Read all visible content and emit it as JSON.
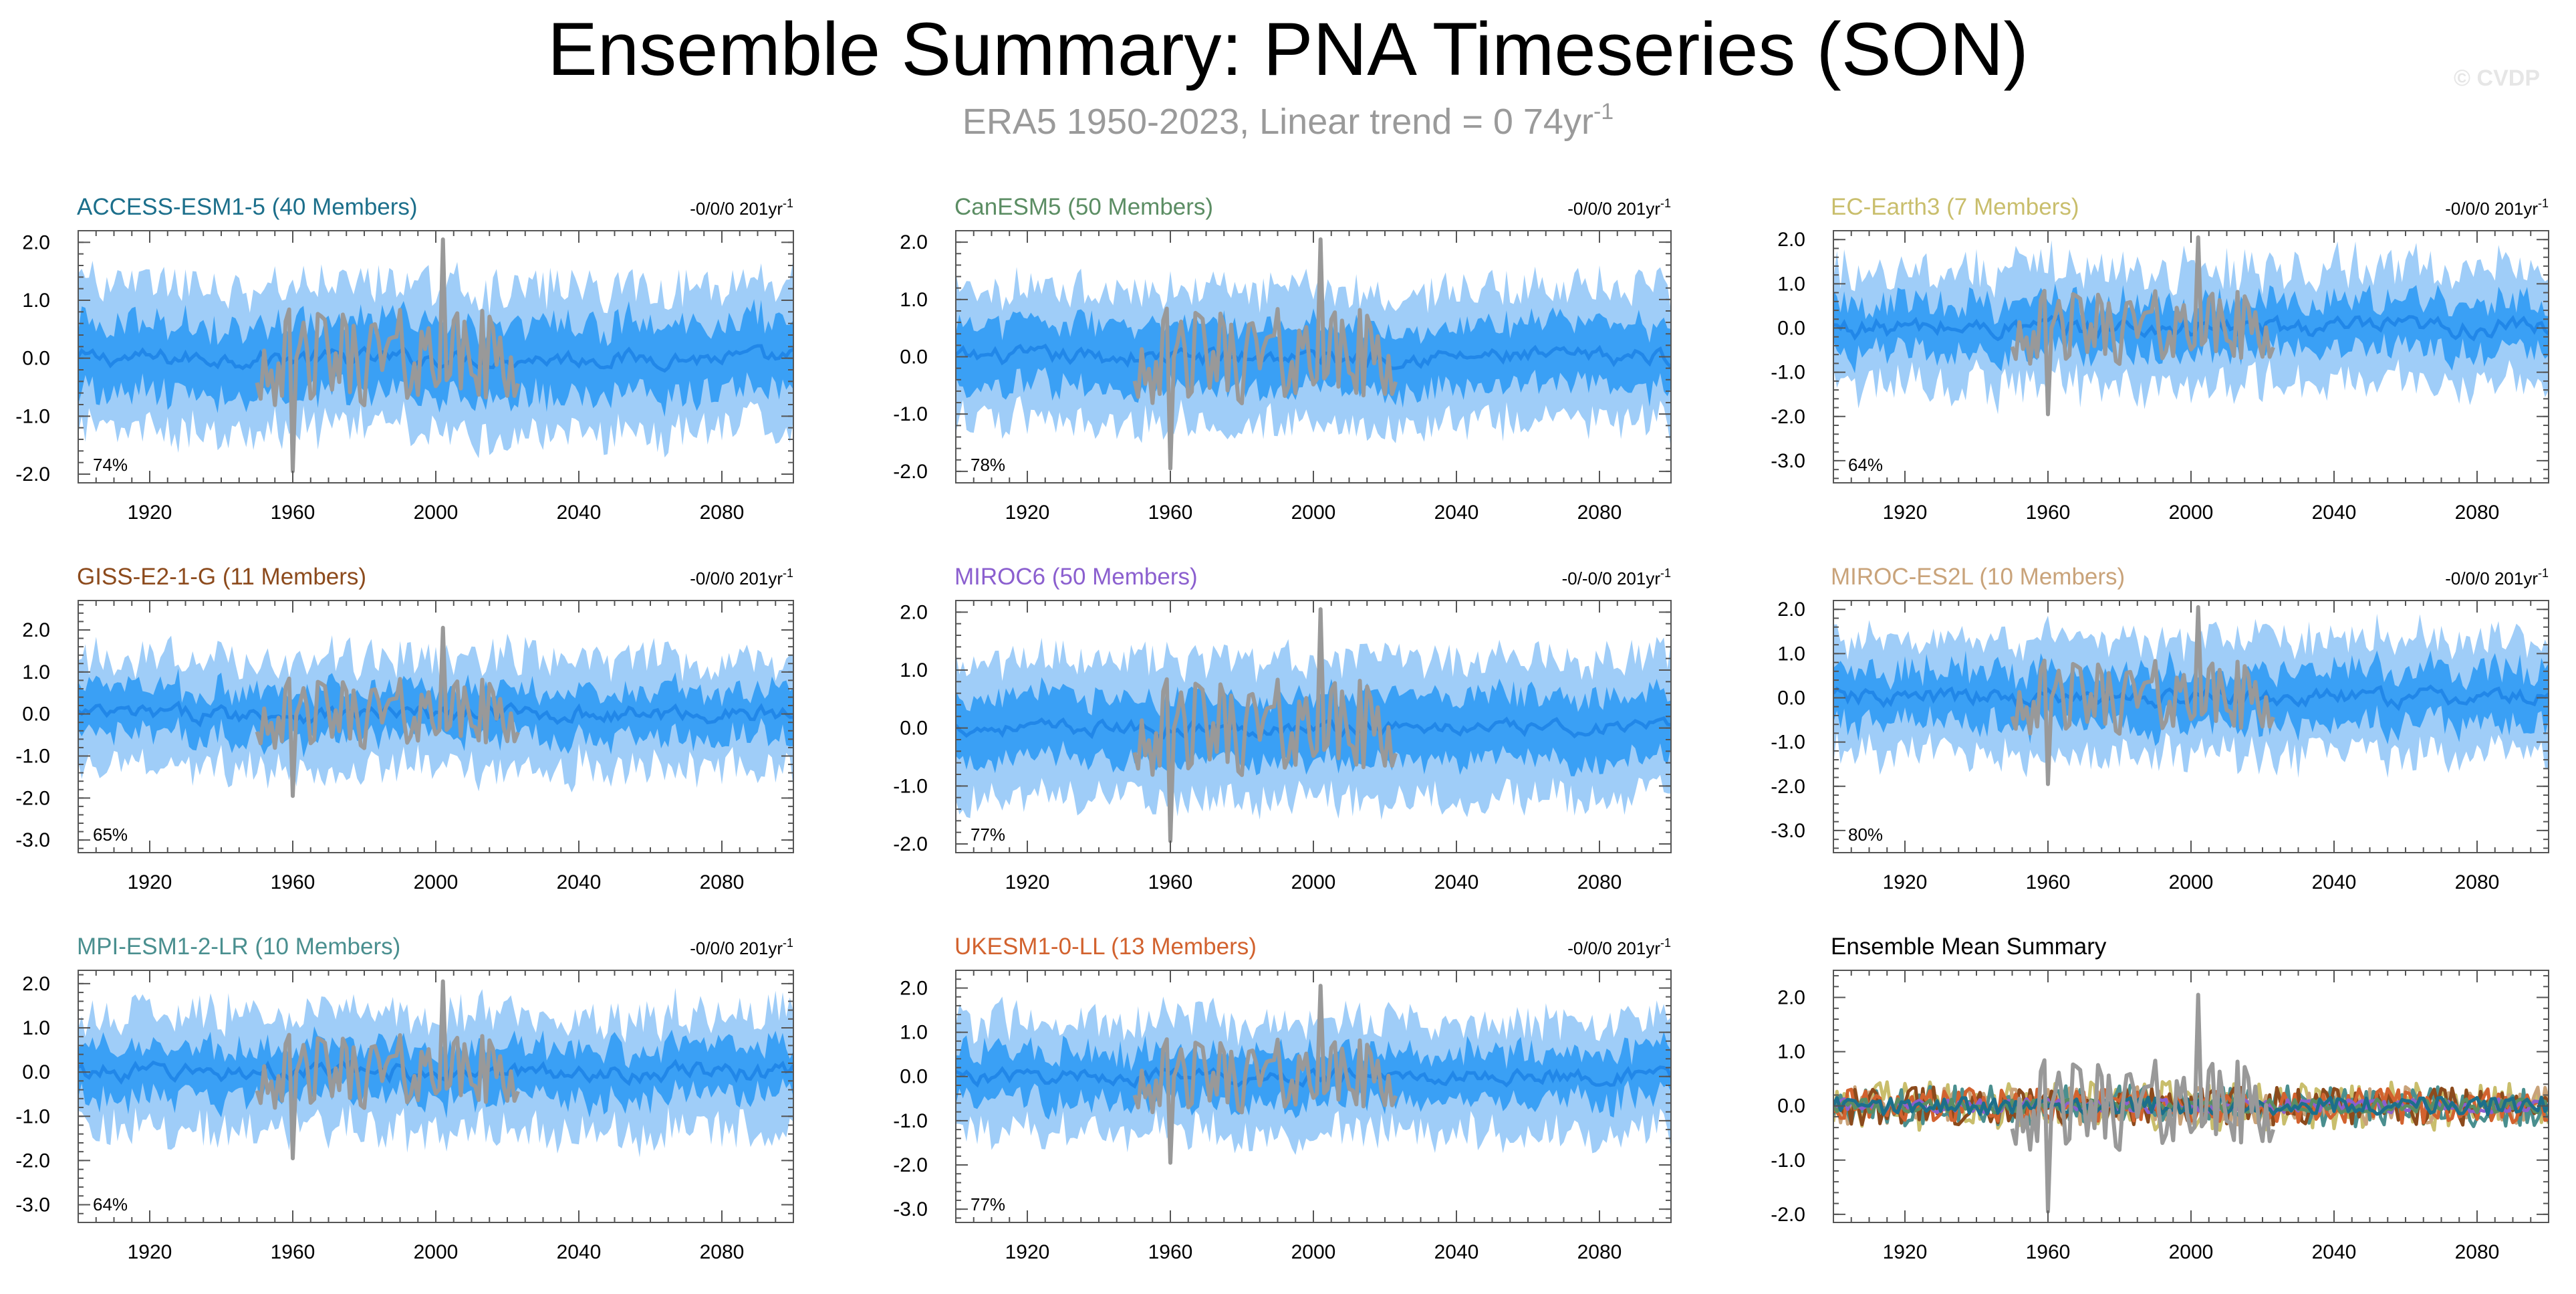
{
  "figure": {
    "title": "Ensemble Summary: PNA Timeseries (SON)",
    "subtitle_prefix": "ERA5 1950-2023, Linear trend = 0 74yr",
    "subtitle_sup": "-1",
    "watermark": "© CVDP"
  },
  "colors": {
    "outer_band": "#9fcdf8",
    "inner_band": "#3aa0f5",
    "ensemble_mean": "#2187e8",
    "observations": "#999999",
    "frame": "#555555"
  },
  "chart_data": [
    {
      "type": "area",
      "id": "access",
      "title": "ACCESS-ESM1-5 (40 Members)",
      "title_color": "#1c6f8b",
      "trend_text": "-0/0/0 201yr",
      "trend_sup": "-1",
      "percent": "74%",
      "ylim": [
        -2.15,
        2.2
      ],
      "yticks": [
        2.0,
        1.0,
        0.0,
        -1.0,
        -2.0
      ],
      "ytick_labels": [
        "2.0",
        "1.0",
        "0.0",
        "-1.0",
        "-2.0"
      ],
      "xlim": [
        1900,
        2100
      ],
      "xticks": [
        1920,
        1960,
        2000,
        2040,
        2080
      ],
      "xtick_labels": [
        "1920",
        "1960",
        "2000",
        "2040",
        "2080"
      ],
      "series": [
        {
          "name": "ensemble 10-90% range",
          "kind": "band",
          "half_width": 1.25,
          "noise": 0.35
        },
        {
          "name": "ensemble 25-75% range",
          "kind": "band",
          "half_width": 0.6,
          "noise": 0.25
        },
        {
          "name": "ensemble mean",
          "kind": "line",
          "amplitude": 0.12
        },
        {
          "name": "ERA5",
          "kind": "obs",
          "years": [
            1950,
            2023
          ],
          "amplitude": 0.85,
          "max": 2.05,
          "max_year": 2002,
          "min": -1.95,
          "min_year": 1960
        }
      ]
    },
    {
      "type": "area",
      "id": "canesm5",
      "title": "CanESM5 (50 Members)",
      "title_color": "#5b8d63",
      "trend_text": "-0/0/0 201yr",
      "trend_sup": "-1",
      "percent": "78%",
      "ylim": [
        -2.2,
        2.2
      ],
      "yticks": [
        2.0,
        1.0,
        0.0,
        -1.0,
        -2.0
      ],
      "ytick_labels": [
        "2.0",
        "1.0",
        "0.0",
        "-1.0",
        "-2.0"
      ],
      "xlim": [
        1900,
        2100
      ],
      "xticks": [
        1920,
        1960,
        2000,
        2040,
        2080
      ],
      "xtick_labels": [
        "1920",
        "1960",
        "2000",
        "2040",
        "2080"
      ],
      "series": [
        {
          "name": "ensemble 10-90% range",
          "kind": "band",
          "half_width": 1.15,
          "noise": 0.3
        },
        {
          "name": "ensemble 25-75% range",
          "kind": "band",
          "half_width": 0.55,
          "noise": 0.2
        },
        {
          "name": "ensemble mean",
          "kind": "line",
          "amplitude": 0.12
        },
        {
          "name": "ERA5",
          "kind": "obs",
          "years": [
            1950,
            2023
          ],
          "amplitude": 0.85,
          "max": 2.05,
          "max_year": 2002,
          "min": -1.95,
          "min_year": 1960
        }
      ]
    },
    {
      "type": "area",
      "id": "ecearth3",
      "title": "EC-Earth3 (7 Members)",
      "title_color": "#c9be6c",
      "trend_text": "-0/0/0 201yr",
      "trend_sup": "-1",
      "percent": "64%",
      "ylim": [
        -3.5,
        2.2
      ],
      "yticks": [
        2.0,
        1.0,
        0.0,
        -1.0,
        -2.0,
        -3.0
      ],
      "ytick_labels": [
        "2.0",
        "1.0",
        "0.0",
        "-1.0",
        "-2.0",
        "-3.0"
      ],
      "xlim": [
        1900,
        2100
      ],
      "xticks": [
        1920,
        1960,
        2000,
        2040,
        2080
      ],
      "xtick_labels": [
        "1920",
        "1960",
        "2000",
        "2040",
        "2080"
      ],
      "series": [
        {
          "name": "ensemble 10-90% range",
          "kind": "band",
          "half_width": 1.3,
          "noise": 0.45
        },
        {
          "name": "ensemble 25-75% range",
          "kind": "band",
          "half_width": 0.55,
          "noise": 0.3
        },
        {
          "name": "ensemble mean",
          "kind": "line",
          "amplitude": 0.18
        },
        {
          "name": "ERA5",
          "kind": "obs",
          "years": [
            1950,
            2023
          ],
          "amplitude": 0.85,
          "max": 2.05,
          "max_year": 2002,
          "min": -1.95,
          "min_year": 1960
        }
      ]
    },
    {
      "type": "area",
      "id": "giss",
      "title": "GISS-E2-1-G (11 Members)",
      "title_color": "#8c4a1c",
      "trend_text": "-0/0/0 201yr",
      "trend_sup": "-1",
      "percent": "65%",
      "ylim": [
        -3.3,
        2.7
      ],
      "yticks": [
        2.0,
        1.0,
        0.0,
        -1.0,
        -2.0,
        -3.0
      ],
      "ytick_labels": [
        "2.0",
        "1.0",
        "0.0",
        "-1.0",
        "-2.0",
        "-3.0"
      ],
      "xlim": [
        1900,
        2100
      ],
      "xticks": [
        1920,
        1960,
        2000,
        2040,
        2080
      ],
      "xtick_labels": [
        "1920",
        "1960",
        "2000",
        "2040",
        "2080"
      ],
      "series": [
        {
          "name": "ensemble 10-90% range",
          "kind": "band",
          "half_width": 1.3,
          "noise": 0.45
        },
        {
          "name": "ensemble 25-75% range",
          "kind": "band",
          "half_width": 0.55,
          "noise": 0.3
        },
        {
          "name": "ensemble mean",
          "kind": "line",
          "amplitude": 0.16
        },
        {
          "name": "ERA5",
          "kind": "obs",
          "years": [
            1950,
            2023
          ],
          "amplitude": 0.85,
          "max": 2.05,
          "max_year": 2002,
          "min": -1.95,
          "min_year": 1960
        }
      ]
    },
    {
      "type": "area",
      "id": "miroc6",
      "title": "MIROC6 (50 Members)",
      "title_color": "#8b5fcf",
      "trend_text": "-0/-0/0 201yr",
      "trend_sup": "-1",
      "percent": "77%",
      "ylim": [
        -2.15,
        2.2
      ],
      "yticks": [
        2.0,
        1.0,
        0.0,
        -1.0,
        -2.0
      ],
      "ytick_labels": [
        "2.0",
        "1.0",
        "0.0",
        "-1.0",
        "-2.0"
      ],
      "xlim": [
        1900,
        2100
      ],
      "xticks": [
        1920,
        1960,
        2000,
        2040,
        2080
      ],
      "xtick_labels": [
        "1920",
        "1960",
        "2000",
        "2040",
        "2080"
      ],
      "series": [
        {
          "name": "ensemble 10-90% range",
          "kind": "band",
          "half_width": 1.2,
          "noise": 0.3
        },
        {
          "name": "ensemble 25-75% range",
          "kind": "band",
          "half_width": 0.55,
          "noise": 0.2
        },
        {
          "name": "ensemble mean",
          "kind": "line",
          "amplitude": 0.1
        },
        {
          "name": "ERA5",
          "kind": "obs",
          "years": [
            1950,
            2023
          ],
          "amplitude": 0.85,
          "max": 2.05,
          "max_year": 2002,
          "min": -1.95,
          "min_year": 1960
        }
      ]
    },
    {
      "type": "area",
      "id": "miroces2l",
      "title": "MIROC-ES2L (10 Members)",
      "title_color": "#c9a37a",
      "trend_text": "-0/0/0 201yr",
      "trend_sup": "-1",
      "percent": "80%",
      "ylim": [
        -3.5,
        2.2
      ],
      "yticks": [
        2.0,
        1.0,
        0.0,
        -1.0,
        -2.0,
        -3.0
      ],
      "ytick_labels": [
        "2.0",
        "1.0",
        "0.0",
        "-1.0",
        "-2.0",
        "-3.0"
      ],
      "xlim": [
        1900,
        2100
      ],
      "xticks": [
        1920,
        1960,
        2000,
        2040,
        2080
      ],
      "xtick_labels": [
        "1920",
        "1960",
        "2000",
        "2040",
        "2080"
      ],
      "series": [
        {
          "name": "ensemble 10-90% range",
          "kind": "band",
          "half_width": 1.3,
          "noise": 0.4
        },
        {
          "name": "ensemble 25-75% range",
          "kind": "band",
          "half_width": 0.6,
          "noise": 0.3
        },
        {
          "name": "ensemble mean",
          "kind": "line",
          "amplitude": 0.16
        },
        {
          "name": "ERA5",
          "kind": "obs",
          "years": [
            1950,
            2023
          ],
          "amplitude": 0.85,
          "max": 2.05,
          "max_year": 2002,
          "min": -1.95,
          "min_year": 1960
        }
      ]
    },
    {
      "type": "area",
      "id": "mpi",
      "title": "MPI-ESM1-2-LR (10 Members)",
      "title_color": "#4a8f8f",
      "trend_text": "-0/0/0 201yr",
      "trend_sup": "-1",
      "percent": "64%",
      "ylim": [
        -3.4,
        2.3
      ],
      "yticks": [
        2.0,
        1.0,
        0.0,
        -1.0,
        -2.0,
        -3.0
      ],
      "ytick_labels": [
        "2.0",
        "1.0",
        "0.0",
        "-1.0",
        "-2.0",
        "-3.0"
      ],
      "xlim": [
        1900,
        2100
      ],
      "xticks": [
        1920,
        1960,
        2000,
        2040,
        2080
      ],
      "xtick_labels": [
        "1920",
        "1960",
        "2000",
        "2040",
        "2080"
      ],
      "series": [
        {
          "name": "ensemble 10-90% range",
          "kind": "band",
          "half_width": 1.3,
          "noise": 0.45
        },
        {
          "name": "ensemble 25-75% range",
          "kind": "band",
          "half_width": 0.55,
          "noise": 0.3
        },
        {
          "name": "ensemble mean",
          "kind": "line",
          "amplitude": 0.16
        },
        {
          "name": "ERA5",
          "kind": "obs",
          "years": [
            1950,
            2023
          ],
          "amplitude": 0.85,
          "max": 2.05,
          "max_year": 2002,
          "min": -1.95,
          "min_year": 1960
        }
      ]
    },
    {
      "type": "area",
      "id": "ukesm",
      "title": "UKESM1-0-LL (13 Members)",
      "title_color": "#d2622e",
      "trend_text": "-0/0/0 201yr",
      "trend_sup": "-1",
      "percent": "77%",
      "ylim": [
        -3.3,
        2.4
      ],
      "yticks": [
        2.0,
        1.0,
        0.0,
        -1.0,
        -2.0,
        -3.0
      ],
      "ytick_labels": [
        "2.0",
        "1.0",
        "0.0",
        "-1.0",
        "-2.0",
        "-3.0"
      ],
      "xlim": [
        1900,
        2100
      ],
      "xticks": [
        1920,
        1960,
        2000,
        2040,
        2080
      ],
      "xtick_labels": [
        "1920",
        "1960",
        "2000",
        "2040",
        "2080"
      ],
      "series": [
        {
          "name": "ensemble 10-90% range",
          "kind": "band",
          "half_width": 1.25,
          "noise": 0.4
        },
        {
          "name": "ensemble 25-75% range",
          "kind": "band",
          "half_width": 0.55,
          "noise": 0.3
        },
        {
          "name": "ensemble mean",
          "kind": "line",
          "amplitude": 0.14
        },
        {
          "name": "ERA5",
          "kind": "obs",
          "years": [
            1950,
            2023
          ],
          "amplitude": 0.85,
          "max": 2.05,
          "max_year": 2002,
          "min": -1.95,
          "min_year": 1960
        }
      ]
    },
    {
      "type": "line",
      "id": "summary",
      "title": "Ensemble Mean Summary",
      "title_color": "#000000",
      "ylim": [
        -2.15,
        2.5
      ],
      "yticks": [
        2.0,
        1.0,
        0.0,
        -1.0,
        -2.0
      ],
      "ytick_labels": [
        "2.0",
        "1.0",
        "0.0",
        "-1.0",
        "-2.0"
      ],
      "xlim": [
        1900,
        2100
      ],
      "xticks": [
        1920,
        1960,
        2000,
        2040,
        2080
      ],
      "xtick_labels": [
        "1920",
        "1960",
        "2000",
        "2040",
        "2080"
      ],
      "series": [
        {
          "name": "EC-Earth3",
          "color": "#c9be6c",
          "amplitude": 0.28
        },
        {
          "name": "MIROC-ES2L",
          "color": "#c9a37a",
          "amplitude": 0.22
        },
        {
          "name": "MPI-ESM1-2-LR",
          "color": "#4a8f8f",
          "amplitude": 0.24
        },
        {
          "name": "GISS-E2-1-G",
          "color": "#8c4a1c",
          "amplitude": 0.22
        },
        {
          "name": "UKESM1-0-LL",
          "color": "#d2622e",
          "amplitude": 0.2
        },
        {
          "name": "MIROC6",
          "color": "#8b5fcf",
          "amplitude": 0.08
        },
        {
          "name": "CanESM5",
          "color": "#5b8d63",
          "amplitude": 0.08
        },
        {
          "name": "ACCESS-ESM1-5",
          "color": "#1c6f8b",
          "amplitude": 0.1
        },
        {
          "name": "ERA5",
          "color": "#999999",
          "kind": "obs",
          "years": [
            1950,
            2023
          ],
          "amplitude": 0.85,
          "max": 2.05,
          "max_year": 2002,
          "min": -1.95,
          "min_year": 1960
        }
      ]
    }
  ]
}
